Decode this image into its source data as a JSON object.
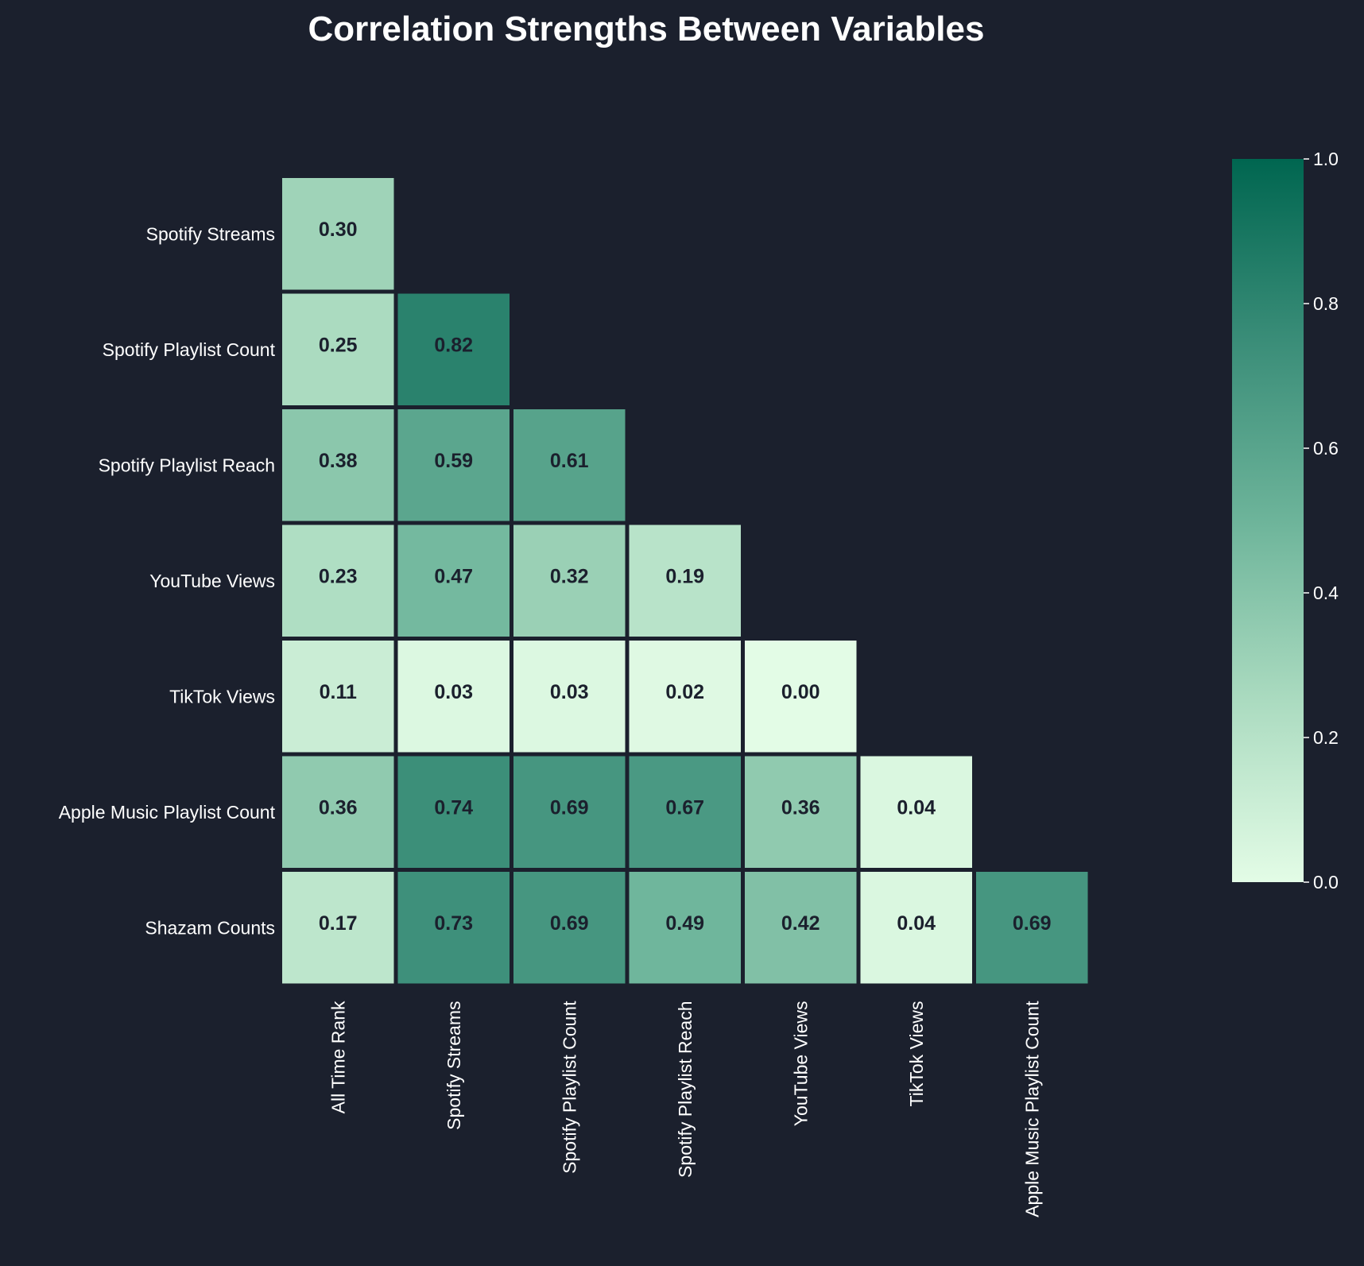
{
  "chart_data": {
    "type": "heatmap",
    "title": "Correlation Strengths Between Variables",
    "rows": [
      "Spotify Streams",
      "Spotify Playlist Count",
      "Spotify Playlist Reach",
      "YouTube Views",
      "TikTok Views",
      "Apple Music Playlist Count",
      "Shazam Counts"
    ],
    "columns": [
      "All Time Rank",
      "Spotify Streams",
      "Spotify Playlist Count",
      "Spotify Playlist Reach",
      "YouTube Views",
      "TikTok Views",
      "Apple Music Playlist Count"
    ],
    "values": [
      [
        0.3
      ],
      [
        0.25,
        0.82
      ],
      [
        0.38,
        0.59,
        0.61
      ],
      [
        0.23,
        0.47,
        0.32,
        0.19
      ],
      [
        0.11,
        0.03,
        0.03,
        0.02,
        0.0
      ],
      [
        0.36,
        0.74,
        0.69,
        0.67,
        0.36,
        0.04
      ],
      [
        0.17,
        0.73,
        0.69,
        0.49,
        0.42,
        0.04,
        0.69
      ]
    ],
    "value_format": "two-decimals",
    "colorbar": {
      "range": [
        0.0,
        1.0
      ],
      "ticks": [
        "0.0",
        "0.2",
        "0.4",
        "0.6",
        "0.8",
        "1.0"
      ],
      "colors": [
        "#e3fce6",
        "#abdbc0",
        "#6db49a",
        "#3a8d78",
        "#006650"
      ]
    },
    "mask": "upper-triangle",
    "background": "#1b202d"
  }
}
